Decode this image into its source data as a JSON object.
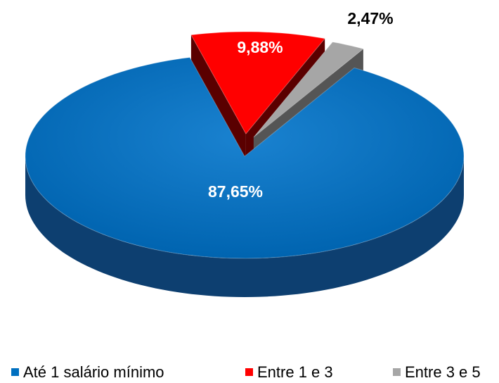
{
  "chart_data": {
    "type": "pie",
    "categories": [
      "Até 1 salário mínimo",
      "Entre 1 e 3",
      "Entre 3 e 5"
    ],
    "values": [
      87.65,
      9.88,
      2.47
    ],
    "value_labels": [
      "87,65%",
      "9,88%",
      "2,47%"
    ],
    "colors": [
      "#0070c0",
      "#ff0000",
      "#a6a6a6"
    ],
    "legend": "bottom"
  }
}
